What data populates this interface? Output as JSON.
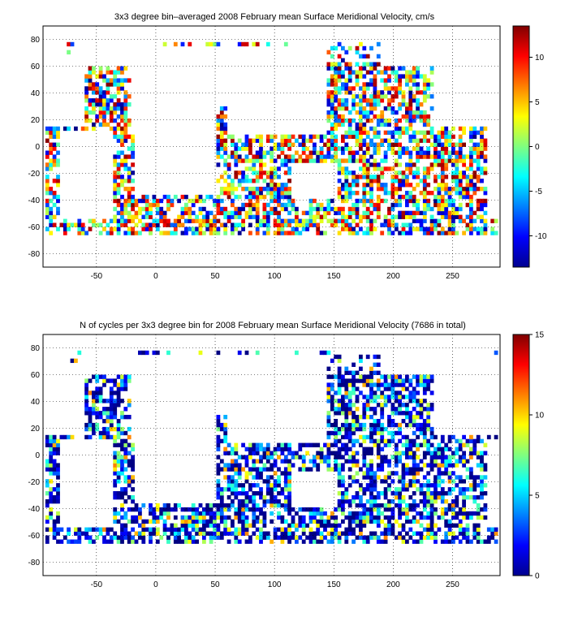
{
  "chart_data": [
    {
      "type": "heatmap",
      "title": "3x3 degree bin–averaged 2008 February mean Surface Meridional Velocity, cm/s",
      "xlim": [
        -95,
        290
      ],
      "ylim": [
        -90,
        90
      ],
      "x_ticks": [
        "-50",
        "0",
        "50",
        "100",
        "150",
        "200",
        "250"
      ],
      "y_ticks": [
        "80",
        "60",
        "40",
        "20",
        "0",
        "-20",
        "-40",
        "-60",
        "-80"
      ],
      "colorbar": {
        "range": [
          -13.5,
          13.5
        ],
        "ticks": [
          "10",
          "5",
          "0",
          "-5",
          "-10"
        ],
        "colormap": "jet"
      },
      "grid": true
    },
    {
      "type": "heatmap",
      "title": "N of cycles per 3x3 degree bin for 2008 February mean Surface Meridional Velocity (7686 in total)",
      "xlim": [
        -95,
        290
      ],
      "ylim": [
        -90,
        90
      ],
      "x_ticks": [
        "-50",
        "0",
        "50",
        "100",
        "150",
        "200",
        "250"
      ],
      "y_ticks": [
        "80",
        "60",
        "40",
        "20",
        "0",
        "-20",
        "-40",
        "-60",
        "-80"
      ],
      "colorbar": {
        "range": [
          0,
          15
        ],
        "ticks": [
          "15",
          "10",
          "5",
          "0"
        ],
        "colormap": "jet"
      },
      "grid": true
    }
  ]
}
